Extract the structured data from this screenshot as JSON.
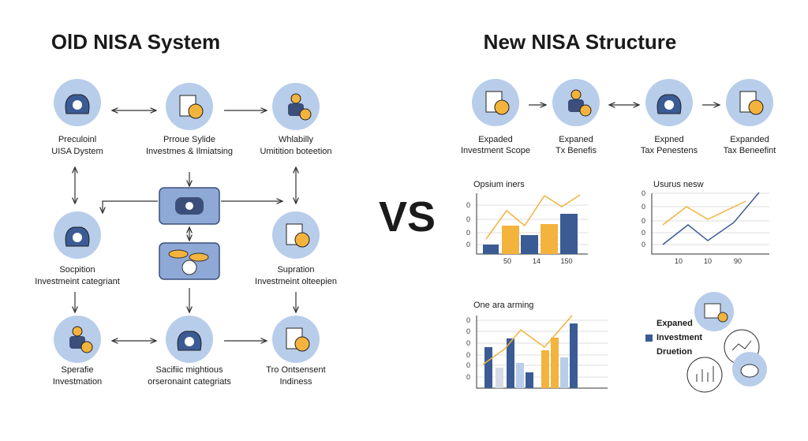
{
  "old": {
    "title": "OlD NISA System",
    "nodes": [
      {
        "lines": [
          "Preculoinl",
          "UISA Dystem"
        ]
      },
      {
        "lines": [
          "Prroue Sylide",
          "Investmes & Ilmiatsing"
        ]
      },
      {
        "lines": [
          "Whlabilly",
          "Umitition boteetion"
        ]
      },
      {
        "lines": [
          "Socpition",
          "Investmeint categriant"
        ]
      },
      {
        "lines": [
          "Supration",
          "Investmeint olteepien"
        ]
      },
      {
        "lines": [
          "Sperafie",
          "Investmation"
        ]
      },
      {
        "lines": [
          "Sacifiic mightious",
          "orseronaint categriats"
        ]
      },
      {
        "lines": [
          "Tro Ontsensent",
          "Indiness"
        ]
      }
    ]
  },
  "vs": "VS",
  "new": {
    "title": "New NISA Structure",
    "nodes": [
      {
        "lines": [
          "Expaded",
          "Investment Scope"
        ]
      },
      {
        "lines": [
          "Expaned",
          "Tx Benefis"
        ]
      },
      {
        "lines": [
          "Expned",
          "Tax Penestens"
        ]
      },
      {
        "lines": [
          "Expanded",
          "Tax Beneefint"
        ]
      }
    ],
    "charts": [
      {
        "title": "Opsium iners",
        "yticks": [
          "0",
          "0",
          "0",
          "0"
        ],
        "xticks": [
          "50",
          "14",
          "150"
        ]
      },
      {
        "title": "Usurus nesw",
        "yticks": [
          "0",
          "0",
          "0",
          "0",
          "0"
        ],
        "xticks": [
          "10",
          "10",
          "90"
        ]
      },
      {
        "title": "One ara arming",
        "yticks": [
          "0",
          "0",
          "0",
          "0",
          "0",
          "0"
        ]
      }
    ],
    "legend": {
      "lines": [
        "Expaned",
        "Investment",
        "Druetion"
      ]
    }
  }
}
